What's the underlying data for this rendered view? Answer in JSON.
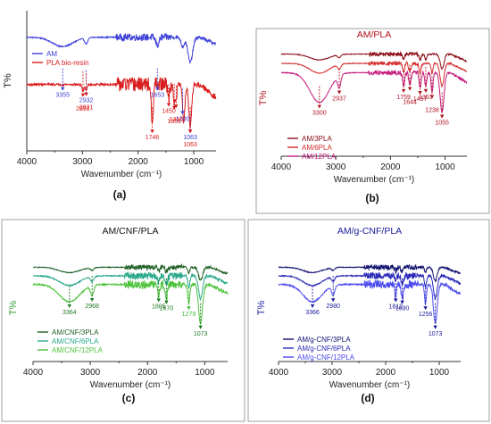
{
  "chart_data": [
    {
      "panel": "(a)",
      "type": "line",
      "title": "",
      "xlabel": "Wavenumber (cm⁻¹)",
      "ylabel": "T%",
      "xlim": [
        4000,
        600
      ],
      "xticks": [
        4000,
        3000,
        2000,
        1000
      ],
      "legend_position": "left",
      "series": [
        {
          "name": "AM",
          "color": "#3b3fd8",
          "offset": 0.82,
          "spread": 0.18,
          "noise": 0.03,
          "bands": [
            [
              3355,
              0.35,
              260
            ],
            [
              2932,
              0.22,
              40
            ],
            [
              1653,
              0.3,
              40
            ],
            [
              1200,
              0.35,
              40
            ],
            [
              1063,
              0.95,
              60
            ]
          ]
        },
        {
          "name": "PLA bio-resin",
          "color": "#d91c1c",
          "offset": 0.5,
          "spread": 0.36,
          "noise": 0.06,
          "bands": [
            [
              2991,
              0.12,
              25
            ],
            [
              2931,
              0.1,
              25
            ],
            [
              1746,
              0.8,
              25
            ],
            [
              1450,
              0.3,
              22
            ],
            [
              1351,
              0.35,
              22
            ],
            [
              1316,
              0.3,
              18
            ],
            [
              1180,
              0.7,
              30
            ],
            [
              1063,
              0.8,
              35
            ]
          ]
        }
      ],
      "annotations": [
        {
          "x": 3355,
          "label": "3355",
          "color": "#3b3fd8"
        },
        {
          "x": 2932,
          "label": "2932",
          "color": "#3b3fd8"
        },
        {
          "x": 1653,
          "label": "1653",
          "color": "#3b3fd8"
        },
        {
          "x": 1200,
          "label": "1200",
          "color": "#3b3fd8"
        },
        {
          "x": 1063,
          "label": "1063",
          "color": "#3b3fd8"
        },
        {
          "x": 2991,
          "label": "2991",
          "color": "#d91c1c"
        },
        {
          "x": 2931,
          "label": "2931",
          "color": "#d91c1c"
        },
        {
          "x": 1746,
          "label": "1746",
          "color": "#d91c1c"
        },
        {
          "x": 1450,
          "label": "1450",
          "color": "#d91c1c"
        },
        {
          "x": 1351,
          "label": "1351",
          "color": "#d91c1c"
        },
        {
          "x": 1316,
          "label": "1316",
          "color": "#d91c1c"
        },
        {
          "x": 1063,
          "label": "1063",
          "color": "#d91c1c"
        }
      ]
    },
    {
      "panel": "(b)",
      "type": "line",
      "title": "AM/PLA",
      "title_color": "#b0121f",
      "xlabel": "Wavenumber (cm⁻¹)",
      "ylabel": "T%",
      "ylabel_color": "#b0121f",
      "xlim": [
        4000,
        600
      ],
      "xticks": [
        4000,
        3000,
        2000,
        1000
      ],
      "legend_position": "bottom-left",
      "series": [
        {
          "name": "AM/3PLA",
          "color": "#8b0a14",
          "offset": 0.9,
          "spread": 0.25,
          "noise": 0.02,
          "bands": [
            [
              3300,
              0.2,
              250
            ],
            [
              2937,
              0.1,
              40
            ],
            [
              1759,
              0.2,
              25
            ],
            [
              1457,
              0.2,
              25
            ],
            [
              1353,
              0.2,
              25
            ],
            [
              1055,
              0.5,
              50
            ]
          ]
        },
        {
          "name": "AM/6PLA",
          "color": "#d42a2a",
          "offset": 0.82,
          "spread": 0.28,
          "noise": 0.02,
          "bands": [
            [
              3300,
              0.3,
              250
            ],
            [
              2937,
              0.15,
              40
            ],
            [
              1759,
              0.3,
              25
            ],
            [
              1644,
              0.25,
              30
            ],
            [
              1457,
              0.3,
              25
            ],
            [
              1238,
              0.3,
              25
            ],
            [
              1055,
              0.7,
              50
            ]
          ]
        },
        {
          "name": "AM/12PLA",
          "color": "#c2187a",
          "offset": 0.74,
          "spread": 0.34,
          "noise": 0.025,
          "bands": [
            [
              3300,
              0.75,
              250
            ],
            [
              2937,
              0.3,
              40
            ],
            [
              1759,
              0.35,
              25
            ],
            [
              1644,
              0.3,
              30
            ],
            [
              1457,
              0.4,
              25
            ],
            [
              1353,
              0.35,
              25
            ],
            [
              1238,
              0.5,
              25
            ],
            [
              1055,
              1.0,
              50
            ]
          ]
        }
      ],
      "annotations": [
        {
          "x": 3300,
          "label": "3300",
          "color": "#b0121f"
        },
        {
          "x": 2937,
          "label": "2937",
          "color": "#b0121f"
        },
        {
          "x": 1759,
          "label": "1759",
          "color": "#b0121f"
        },
        {
          "x": 1644,
          "label": "1644",
          "color": "#b0121f"
        },
        {
          "x": 1457,
          "label": "1457",
          "color": "#b0121f"
        },
        {
          "x": 1353,
          "label": "1353",
          "color": "#b0121f"
        },
        {
          "x": 1238,
          "label": "1238",
          "color": "#b0121f"
        },
        {
          "x": 1055,
          "label": "1055",
          "color": "#b0121f"
        }
      ]
    },
    {
      "panel": "(c)",
      "type": "line",
      "title": "AM/CNF/PLA",
      "title_color": "#111111",
      "xlabel": "Wavenumber (cm⁻¹)",
      "ylabel": "T%",
      "ylabel_color": "#2e9e2e",
      "xlim": [
        4000,
        600
      ],
      "xticks": [
        4000,
        3000,
        2000,
        1000
      ],
      "legend_position": "bottom-left",
      "series": [
        {
          "name": "AM/CNF/3PLA",
          "color": "#1f5f24",
          "offset": 0.9,
          "spread": 0.25,
          "noise": 0.03,
          "bands": [
            [
              3364,
              0.2,
              250
            ],
            [
              2968,
              0.1,
              40
            ],
            [
              1805,
              0.15,
              25
            ],
            [
              1670,
              0.15,
              30
            ],
            [
              1279,
              0.2,
              25
            ],
            [
              1073,
              0.5,
              50
            ]
          ]
        },
        {
          "name": "AM/CNF/6PLA",
          "color": "#2aa88a",
          "offset": 0.82,
          "spread": 0.3,
          "noise": 0.04,
          "bands": [
            [
              3364,
              0.3,
              250
            ],
            [
              2968,
              0.15,
              40
            ],
            [
              1805,
              0.2,
              25
            ],
            [
              1670,
              0.25,
              30
            ],
            [
              1279,
              0.35,
              25
            ],
            [
              1073,
              0.7,
              50
            ]
          ]
        },
        {
          "name": "AM/CNF/12PLA",
          "color": "#4cc23a",
          "offset": 0.74,
          "spread": 0.36,
          "noise": 0.05,
          "bands": [
            [
              3364,
              0.45,
              250
            ],
            [
              2968,
              0.25,
              40
            ],
            [
              1805,
              0.3,
              25
            ],
            [
              1670,
              0.35,
              30
            ],
            [
              1279,
              0.5,
              25
            ],
            [
              1073,
              1.0,
              50
            ]
          ]
        }
      ],
      "annotations": [
        {
          "x": 3364,
          "label": "3364",
          "color": "#1f7a24"
        },
        {
          "x": 2968,
          "label": "2968",
          "color": "#1f7a24"
        },
        {
          "x": 1805,
          "label": "1805",
          "color": "#1f7a24"
        },
        {
          "x": 1670,
          "label": "1670",
          "color": "#1f7a24"
        },
        {
          "x": 1279,
          "label": "1279",
          "color": "#3cbb3c"
        },
        {
          "x": 1073,
          "label": "1073",
          "color": "#1f7a24"
        }
      ]
    },
    {
      "panel": "(d)",
      "type": "line",
      "title": "AM/g-CNF/PLA",
      "title_color": "#1a1a9c",
      "xlabel": "Wavenumber (cm⁻¹)",
      "ylabel": "T%",
      "ylabel_color": "#1a1a9c",
      "xlim": [
        4000,
        600
      ],
      "xticks": [
        4000,
        3000,
        2000,
        1000
      ],
      "legend_position": "bottom-left",
      "series": [
        {
          "name": "AM/g-CNF/3PLA",
          "color": "#101070",
          "offset": 0.9,
          "spread": 0.25,
          "noise": 0.03,
          "bands": [
            [
              3366,
              0.2,
              250
            ],
            [
              2980,
              0.1,
              40
            ],
            [
              1812,
              0.15,
              25
            ],
            [
              1690,
              0.15,
              30
            ],
            [
              1256,
              0.2,
              25
            ],
            [
              1073,
              0.5,
              50
            ]
          ]
        },
        {
          "name": "AM/g-CNF/6PLA",
          "color": "#2a2ab8",
          "offset": 0.82,
          "spread": 0.3,
          "noise": 0.04,
          "bands": [
            [
              3366,
              0.3,
              250
            ],
            [
              2980,
              0.15,
              40
            ],
            [
              1812,
              0.2,
              25
            ],
            [
              1690,
              0.25,
              30
            ],
            [
              1256,
              0.35,
              25
            ],
            [
              1073,
              0.7,
              50
            ]
          ]
        },
        {
          "name": "AM/g-CNF/12PLA",
          "color": "#4a4af0",
          "offset": 0.74,
          "spread": 0.36,
          "noise": 0.05,
          "bands": [
            [
              3366,
              0.45,
              250
            ],
            [
              2980,
              0.25,
              40
            ],
            [
              1812,
              0.3,
              25
            ],
            [
              1690,
              0.35,
              30
            ],
            [
              1256,
              0.5,
              25
            ],
            [
              1073,
              1.0,
              50
            ]
          ]
        }
      ],
      "annotations": [
        {
          "x": 3366,
          "label": "3366",
          "color": "#1a1a9c"
        },
        {
          "x": 2980,
          "label": "2980",
          "color": "#1a1a9c"
        },
        {
          "x": 1812,
          "label": "1812",
          "color": "#1a1a9c"
        },
        {
          "x": 1690,
          "label": "1690",
          "color": "#1a1a9c"
        },
        {
          "x": 1256,
          "label": "1256",
          "color": "#1a1a9c"
        },
        {
          "x": 1073,
          "label": "1073",
          "color": "#1a1a9c"
        }
      ]
    }
  ]
}
